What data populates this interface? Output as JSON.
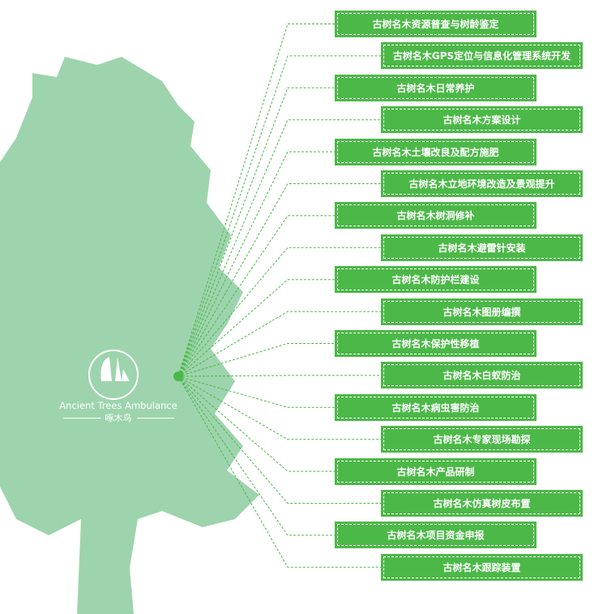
{
  "logo": {
    "english": "Ancient Trees Ambulance",
    "chinese": "啄木鸟"
  },
  "colors": {
    "box": "#4cb848",
    "tree": "#9dd4ad",
    "line": "#4cb848"
  },
  "items": [
    "古树名木资源普查与树龄鉴定",
    "古树名木GPS定位与信息化管理系统开发",
    "古树名木日常养护",
    "古树名木方案设计",
    "古树名木土壤改良及配方施肥",
    "古树名木立地环境改造及景观提升",
    "古树名木树洞修补",
    "古树名木避雷针安装",
    "古树名木防护栏建设",
    "古树名木图册编撰",
    "古树名木保护性移植",
    "古树名木白蚁防治",
    "古树名木病虫害防治",
    "古树名木专家现场勘探",
    "古树名木产品研制",
    "古树名木仿真树皮布置",
    "古树名木项目资金申报",
    "古树名木跟踪装置"
  ]
}
